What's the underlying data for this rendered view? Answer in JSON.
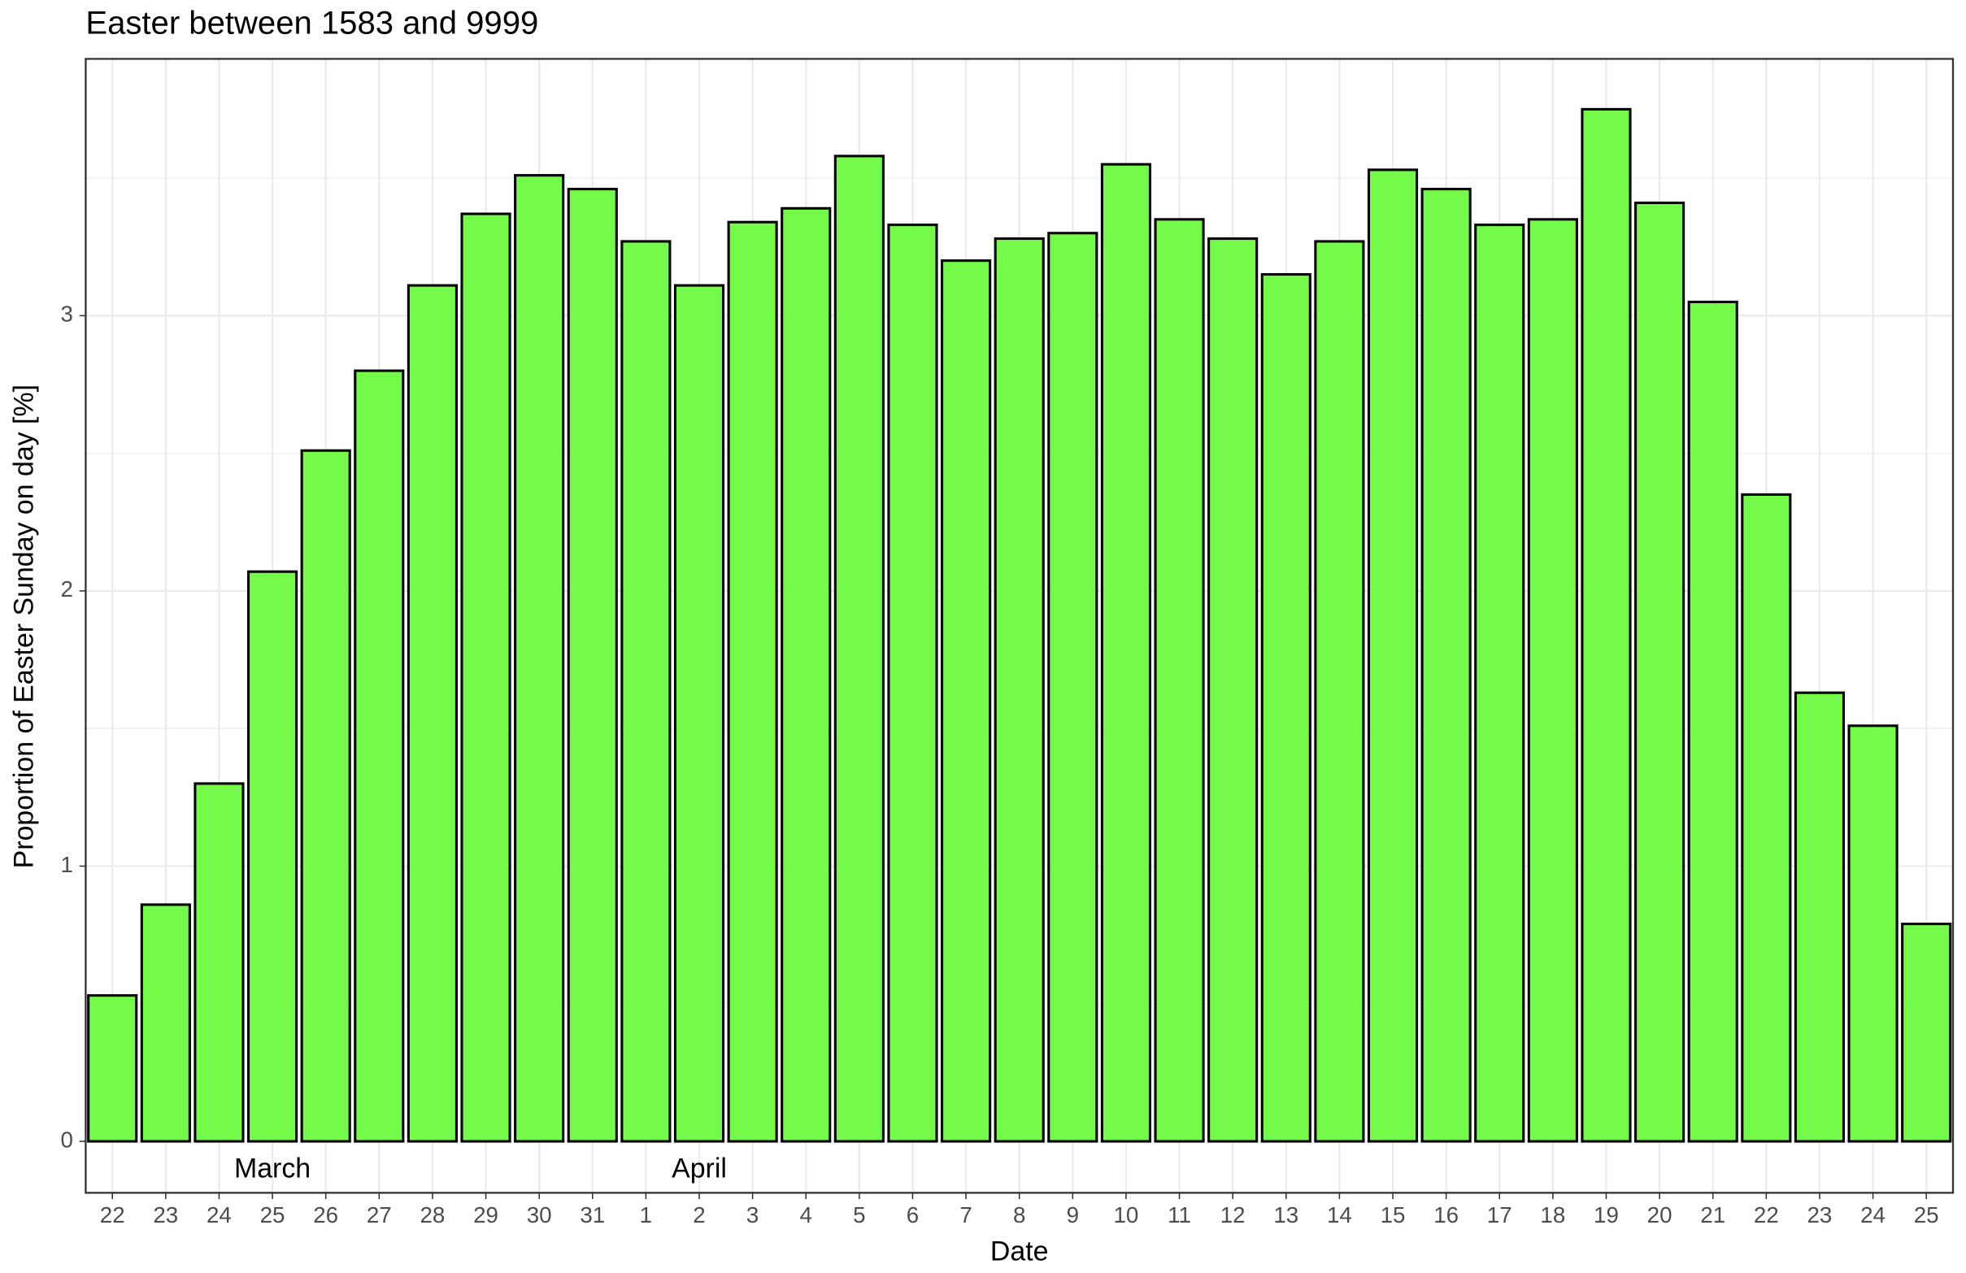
{
  "chart_data": {
    "type": "bar",
    "title": "Easter between 1583 and 9999",
    "x_label": "Date",
    "y_label": "Proportion of Easter Sunday on day [%]",
    "annotations": [
      "March",
      "April"
    ],
    "categories": [
      "22",
      "23",
      "24",
      "25",
      "26",
      "27",
      "28",
      "29",
      "30",
      "31",
      "1",
      "2",
      "3",
      "4",
      "5",
      "6",
      "7",
      "8",
      "9",
      "10",
      "11",
      "12",
      "13",
      "14",
      "15",
      "16",
      "17",
      "18",
      "19",
      "20",
      "21",
      "22",
      "23",
      "24",
      "25"
    ],
    "values": [
      0.53,
      0.86,
      1.3,
      2.07,
      2.51,
      2.8,
      3.11,
      3.37,
      3.51,
      3.46,
      3.27,
      3.11,
      3.34,
      3.39,
      3.58,
      3.33,
      3.2,
      3.28,
      3.3,
      3.55,
      3.35,
      3.28,
      3.15,
      3.27,
      3.53,
      3.46,
      3.33,
      3.35,
      3.75,
      3.41,
      3.05,
      2.35,
      1.63,
      1.51,
      0.79
    ],
    "color": "#74fb4a",
    "ylim": [
      -0.187,
      3.933
    ],
    "yticks": [
      0,
      1,
      2,
      3
    ],
    "grid": true
  }
}
